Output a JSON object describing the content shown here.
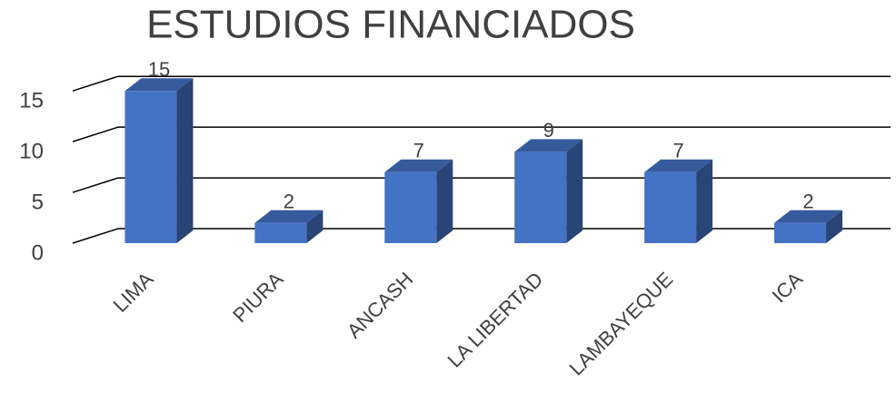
{
  "chart_data": {
    "type": "bar3d",
    "title": "ESTUDIOS FINANCIADOS",
    "categories": [
      "LIMA",
      "PIURA",
      "ANCASH",
      "LA LIBERTAD",
      "LAMBAYEQUE",
      "ICA"
    ],
    "values": [
      15,
      2,
      7,
      9,
      7,
      2
    ],
    "color": "#4472c4",
    "ylim": [
      0,
      16
    ],
    "yticks": [
      0,
      5,
      10,
      15
    ],
    "grid": true
  }
}
